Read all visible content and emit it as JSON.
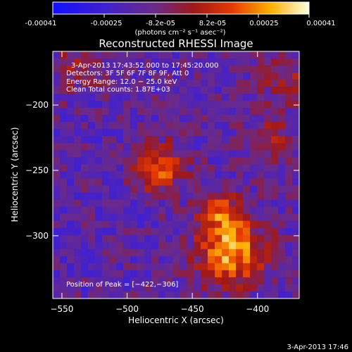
{
  "colorbar": {
    "ticks": [
      "-0.00041",
      "-0.00025",
      "-8.2e-05",
      "8.2e-05",
      "0.00025",
      "0.00041"
    ],
    "unit_label": "(photons cm⁻² s⁻¹ asec⁻²)"
  },
  "chart_data": {
    "type": "heatmap",
    "title": "Reconstructed RHESSI Image",
    "xlabel": "Heliocentric X (arcsec)",
    "ylabel": "Heliocentric Y (arcsec)",
    "xlim": [
      -557,
      -368
    ],
    "ylim": [
      -348,
      -159
    ],
    "xticks": [
      -550,
      -500,
      -450,
      -400
    ],
    "xtick_labels": [
      "−550",
      "−500",
      "−450",
      "−400"
    ],
    "yticks": [
      -200,
      -250,
      -300
    ],
    "ytick_labels": [
      "−200",
      "−250",
      "−300"
    ],
    "zlim": [
      -0.00041,
      0.00041
    ],
    "colormap": "blue-purple-red-yellow-white",
    "annotations": [
      "3-Apr-2013 17:43:52.000 to 17:45:20.000",
      "Detectors: 3F 5F 6F 7F 8F 9F, Att 0",
      "Energy Range: 12.0 − 25.0 keV",
      "Clean     Total counts: 1.87E+03"
    ],
    "peak_label": "Position of Peak = [−422,−306]",
    "peak": {
      "x": -422,
      "y": -306
    },
    "sources": [
      {
        "x": -475,
        "y": -248,
        "amp": 0.00031,
        "sigma": 13
      },
      {
        "x": -420,
        "y": -312,
        "amp": 0.00041,
        "sigma": 18
      },
      {
        "x": -428,
        "y": -283,
        "amp": 0.00024,
        "sigma": 12
      },
      {
        "x": -390,
        "y": -228,
        "amp": 0.00016,
        "sigma": 14
      },
      {
        "x": -540,
        "y": -170,
        "amp": 0.00012,
        "sigma": 16
      },
      {
        "x": -380,
        "y": -180,
        "amp": 0.00018,
        "sigma": 12
      }
    ],
    "background": -0.00014
  },
  "footer": {
    "date": "3-Apr-2013 17:46"
  }
}
